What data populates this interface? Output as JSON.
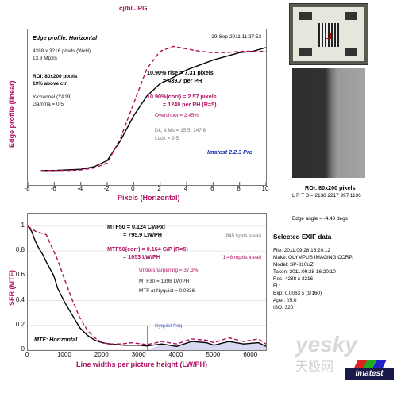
{
  "file_title": "cjfbl.JPG",
  "edge": {
    "subtitle": "Edge profile: Horizontal",
    "timestamp": "29-Sep-2011 11:27:53",
    "image_info": [
      "4288 x 3216 pixels (WxH)",
      "13.8 Mpxls"
    ],
    "roi": [
      "ROI: 80x200 pixels",
      "19% above ctr."
    ],
    "channel": [
      "Y-channel  (YA19)",
      "Gamma = 0.5"
    ],
    "rise_lines": [
      "10.90% rise = 7.31 pixels",
      "= 439.7 per PH"
    ],
    "corr_lines": [
      "10.90%(corr) = 2.57 pixels",
      "= 1249 per PH   (R=5)"
    ],
    "overshoot": "Overshoot = 2.45%",
    "levels": [
      "Dk, lt Ms = 15.5, 147.6",
      "Lt/dk = 9.5"
    ],
    "version": "Imatest 2.2.3 Pro",
    "ylabel": "Edge profile (linear)",
    "xlabel": "Pixels (Horizontal)",
    "xticks": [
      "-8",
      "-6",
      "-4",
      "-2",
      "0",
      "2",
      "4",
      "6",
      "8",
      "10"
    ]
  },
  "mtf": {
    "mtf50_lines": [
      "MTF50 = 0.124 Cy/Pxl",
      "= 795.9 LW/PH"
    ],
    "mtf50_ideal": "(845 kpxls ideal)",
    "mtf50corr_lines": [
      "MTF50(corr) = 0.164 C/P  (R=5)",
      "= 1053 LW/PH"
    ],
    "mtf50corr_ideal": "(1.48 mpxls ideal)",
    "undersharpening": "Undersharpening = 37.3%",
    "mtf30": "MTF30 = 1398 LW/PH",
    "nyquist_line": "MTF at Nyquist = 0.0336",
    "nyquist_label": "Nyquist freq",
    "subtitle": "MTF: Horizontal",
    "ylabel": "SFR (MTF)",
    "xlabel": "Line widths per picture height (LW/PH)",
    "yticks": [
      "1",
      "0.8",
      "0.6",
      "0.4",
      "0.2",
      "0"
    ],
    "xticks": [
      "0",
      "1000",
      "2000",
      "3000",
      "4000",
      "5000",
      "6000"
    ]
  },
  "roi_caption": "ROI: 80x200 pixels",
  "roi_coords": "L R T B = 2138 2217  997 1196",
  "edge_angle": "Edge angle = -4.43 degs",
  "exif": {
    "title": "Selected EXIF data",
    "rows": [
      "File:  2011:09:28 16:20:12",
      "Make:  OLYMPUS IMAGING CORP.",
      "Model:  SP-810UZ",
      "Taken:  2011:09:28 16:20:10",
      "Res:   4288 x 3216",
      "FL:",
      "Exp:   0.0063 s  (1/160)",
      "Aper:  f/5.0",
      "ISO:   320"
    ]
  },
  "imatest_logo": "Imatest",
  "watermark": "yesky",
  "watermark_cn": "天极网",
  "colors": {
    "accent": "#b01060",
    "curve_black": "#000000",
    "nyquist_blue": "#4a60c8",
    "fill": "#d8d8f0"
  },
  "chart_data": [
    {
      "type": "line",
      "title": "Edge profile: Horizontal",
      "xlabel": "Pixels (Horizontal)",
      "ylabel": "Edge profile (linear)",
      "xlim": [
        -8,
        10
      ],
      "ylim": [
        0,
        1.1
      ],
      "series": [
        {
          "values": [
            [
              -7,
              0.04
            ],
            [
              -6,
              0.04
            ],
            [
              -5,
              0.045
            ],
            [
              -4,
              0.05
            ],
            [
              -3,
              0.07
            ],
            [
              -2,
              0.12
            ],
            [
              -1,
              0.28
            ],
            [
              0,
              0.48
            ],
            [
              1,
              0.64
            ],
            [
              2,
              0.74
            ],
            [
              3,
              0.79
            ],
            [
              4,
              0.85
            ],
            [
              5,
              0.89
            ],
            [
              6,
              0.93
            ],
            [
              7,
              0.96
            ],
            [
              8,
              0.99
            ],
            [
              9,
              1.0
            ],
            [
              10,
              1.03
            ]
          ]
        },
        {
          "values": [
            [
              -7,
              0.04
            ],
            [
              -6,
              0.04
            ],
            [
              -5,
              0.04
            ],
            [
              -4,
              0.045
            ],
            [
              -3,
              0.06
            ],
            [
              -2,
              0.1
            ],
            [
              -1,
              0.3
            ],
            [
              0,
              0.58
            ],
            [
              1,
              0.86
            ],
            [
              2,
              1.0
            ],
            [
              3,
              1.04
            ],
            [
              4,
              1.02
            ],
            [
              5,
              1.0
            ],
            [
              6,
              0.99
            ],
            [
              7,
              0.99
            ],
            [
              8,
              1.0
            ],
            [
              9,
              1.0
            ],
            [
              10,
              1.0
            ]
          ]
        }
      ]
    },
    {
      "type": "line",
      "title": "MTF: Horizontal",
      "xlabel": "Line widths per picture height (LW/PH)",
      "ylabel": "SFR (MTF)",
      "xlim": [
        0,
        6400
      ],
      "ylim": [
        0,
        1.05
      ],
      "nyquist_x": 3216,
      "series": [
        {
          "values": [
            [
              0,
              1.0
            ],
            [
              100,
              0.96
            ],
            [
              200,
              0.88
            ],
            [
              300,
              0.82
            ],
            [
              400,
              0.77
            ],
            [
              500,
              0.71
            ],
            [
              700,
              0.6
            ],
            [
              800,
              0.5
            ],
            [
              1000,
              0.38
            ],
            [
              1200,
              0.28
            ],
            [
              1400,
              0.18
            ],
            [
              1600,
              0.12
            ],
            [
              1800,
              0.08
            ],
            [
              2000,
              0.06
            ],
            [
              2200,
              0.05
            ],
            [
              2600,
              0.04
            ],
            [
              3000,
              0.04
            ],
            [
              3200,
              0.034
            ],
            [
              3600,
              0.05
            ],
            [
              4000,
              0.03
            ],
            [
              4400,
              0.07
            ],
            [
              4800,
              0.06
            ],
            [
              5000,
              0.04
            ],
            [
              5400,
              0.07
            ],
            [
              5800,
              0.05
            ],
            [
              6200,
              0.06
            ],
            [
              6400,
              0.03
            ]
          ]
        },
        {
          "values": [
            [
              0,
              1.0
            ],
            [
              200,
              0.96
            ],
            [
              400,
              0.94
            ],
            [
              500,
              0.93
            ],
            [
              600,
              0.86
            ],
            [
              800,
              0.73
            ],
            [
              1000,
              0.56
            ],
            [
              1200,
              0.4
            ],
            [
              1400,
              0.26
            ],
            [
              1600,
              0.16
            ],
            [
              1800,
              0.1
            ],
            [
              2000,
              0.06
            ],
            [
              2200,
              0.05
            ],
            [
              2500,
              0.05
            ],
            [
              2800,
              0.06
            ],
            [
              3200,
              0.045
            ],
            [
              3600,
              0.07
            ],
            [
              4000,
              0.05
            ],
            [
              4400,
              0.09
            ],
            [
              4800,
              0.08
            ],
            [
              5000,
              0.06
            ],
            [
              5400,
              0.1
            ],
            [
              5800,
              0.07
            ],
            [
              6200,
              0.09
            ],
            [
              6400,
              0.05
            ]
          ]
        }
      ]
    }
  ]
}
